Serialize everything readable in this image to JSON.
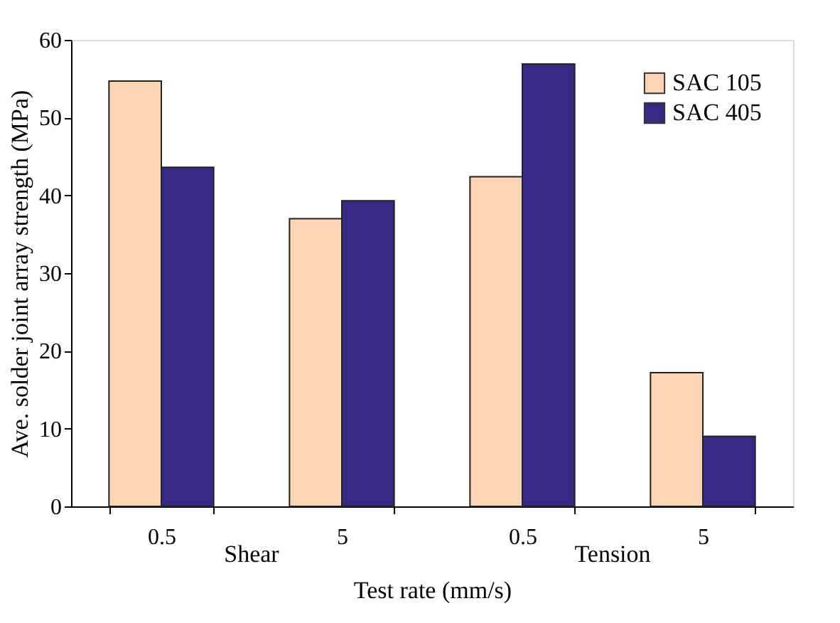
{
  "chart_data": {
    "type": "bar",
    "xlabel": "Test rate (mm/s)",
    "ylabel": "Ave. solder joint array strength (MPa)",
    "categories": [
      "0.5",
      "5",
      "0.5",
      "5"
    ],
    "series": [
      {
        "name": "SAC 105",
        "color": "#fcd5b5",
        "values": [
          54.7,
          37.0,
          42.4,
          17.2
        ]
      },
      {
        "name": "SAC 405",
        "color": "#372883",
        "values": [
          43.6,
          39.3,
          56.9,
          9.0
        ]
      }
    ],
    "ylim": [
      0,
      60
    ],
    "yticks": [
      0,
      10,
      20,
      30,
      40,
      50,
      60
    ],
    "grid": false,
    "legend": "top right",
    "annotations": [
      "Shear",
      "Tension"
    ]
  }
}
